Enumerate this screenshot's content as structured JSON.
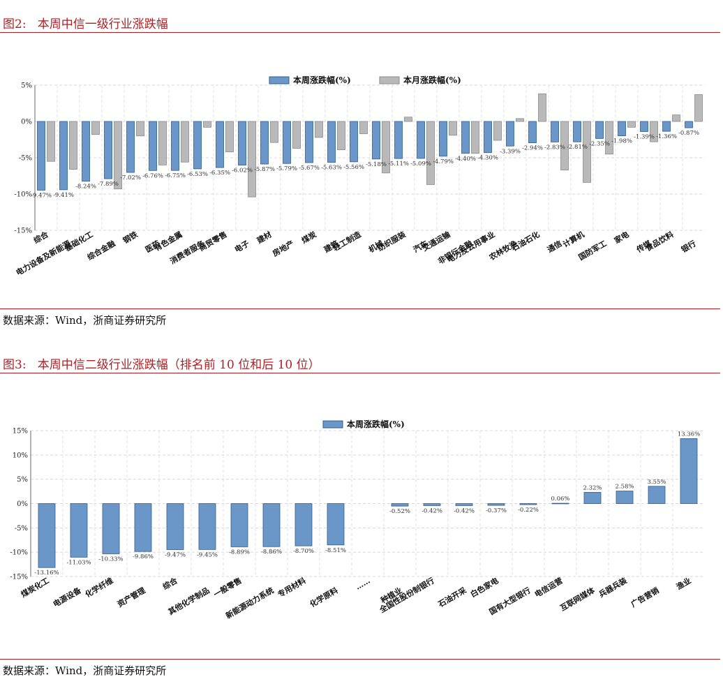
{
  "figure2": {
    "title": "图2:   本周中信一级行业涨跌幅",
    "source": "数据来源：Wind，浙商证券研究所"
  },
  "figure3": {
    "title": "图3:   本周中信二级行业涨跌幅（排名前 10 位和后 10 位）",
    "source": "数据来源：Wind，浙商证券研究所"
  },
  "colors": {
    "accent": "#b01e23",
    "bar_blue": "#6a97c8",
    "bar_blue_edge": "#2e5d92",
    "bar_gray": "#b9b9b9",
    "bar_gray_edge": "#8a8a8a"
  },
  "chart_data": [
    {
      "type": "bar",
      "title": "",
      "xlabel": "",
      "ylabel": "",
      "ylim": [
        -15,
        5
      ],
      "yticks": [
        "5%",
        "0%",
        "-5%",
        "-10%",
        "-15%"
      ],
      "grid": true,
      "legend": "top-center",
      "categories": [
        "综合",
        "电力设备及新能源",
        "基础化工",
        "综合金融",
        "钢铁",
        "医药",
        "有色金属",
        "消费者服务",
        "商贸零售",
        "电子",
        "建材",
        "房地产",
        "煤炭",
        "建筑",
        "轻工制造",
        "机械",
        "纺织服装",
        "汽车",
        "交通运输",
        "非银行金融",
        "电力及公用事业",
        "农林牧渔",
        "石油石化",
        "通信",
        "计算机",
        "国防军工",
        "家电",
        "传媒",
        "食品饮料",
        "银行"
      ],
      "series": [
        {
          "name": "本周涨跌幅(%)",
          "values": [
            -9.47,
            -9.41,
            -8.24,
            -7.89,
            -7.02,
            -6.76,
            -6.75,
            -6.53,
            -6.35,
            -6.02,
            -5.87,
            -5.79,
            -5.67,
            -5.63,
            -5.56,
            -5.18,
            -5.11,
            -5.09,
            -4.79,
            -4.4,
            -4.3,
            -3.39,
            -2.94,
            -2.83,
            -2.81,
            -2.35,
            -1.98,
            -1.39,
            -1.36,
            -0.87
          ]
        },
        {
          "name": "本月涨跌幅(%)",
          "values": [
            -5.5,
            -6.6,
            -1.8,
            -9.3,
            -2.0,
            -6.0,
            -5.6,
            -0.8,
            -4.2,
            -10.4,
            -2.9,
            -3.7,
            -2.2,
            -3.9,
            -1.7,
            -7.1,
            0.6,
            -8.7,
            -1.9,
            -4.4,
            -2.6,
            0.4,
            3.8,
            -6.7,
            -8.4,
            -4.5,
            -0.8,
            -2.8,
            0.9,
            3.7
          ]
        }
      ],
      "labels": [
        "-9.47%",
        "-9.41%",
        "-8.24%",
        "-7.89%",
        "-7.02%",
        "-6.76%",
        "-6.75%",
        "-6.53%",
        "-6.35%",
        "-6.02%",
        "-5.87%",
        "-5.79%",
        "-5.67%",
        "-5.63%",
        "-5.56%",
        "-5.18%",
        "-5.11%",
        "-5.09%",
        "-4.79%",
        "-4.40%",
        "-4.30%",
        "-3.39%",
        "-2.94%",
        "-2.83%",
        "-2.81%",
        "-2.35%",
        "-1.98%",
        "-1.39%",
        "-1.36%",
        "-0.87%"
      ]
    },
    {
      "type": "bar",
      "title": "",
      "xlabel": "",
      "ylabel": "",
      "ylim": [
        -15,
        15
      ],
      "yticks": [
        "15%",
        "10%",
        "5%",
        "0%",
        "-5%",
        "-10%",
        "-15%"
      ],
      "grid": true,
      "legend": "top-center",
      "categories": [
        "煤炭化工",
        "电源设备",
        "化学纤维",
        "资产管理",
        "综合",
        "其他化学制品",
        "一般零售",
        "新能源动力系统",
        "专用材料",
        "化学原料",
        "……",
        "种植业",
        "全国性股份制银行",
        "石油开采",
        "白色家电",
        "国有大型银行",
        "电信运营",
        "互联网媒体",
        "兵器兵装",
        "广告营销",
        "渔业"
      ],
      "series": [
        {
          "name": "本周涨跌幅(%)",
          "values": [
            -13.16,
            -11.03,
            -10.33,
            -9.86,
            -9.47,
            -9.45,
            -8.89,
            -8.86,
            -8.7,
            -8.51,
            null,
            -0.52,
            -0.42,
            -0.42,
            -0.37,
            -0.22,
            0.06,
            2.32,
            2.58,
            3.55,
            13.36
          ]
        }
      ],
      "labels": [
        "-13.16%",
        "-11.03%",
        "-10.33%",
        "-9.86%",
        "-9.47%",
        "-9.45%",
        "-8.89%",
        "-8.86%",
        "-8.70%",
        "-8.51%",
        "",
        "-0.52%",
        "-0.42%",
        "-0.42%",
        "-0.37%",
        "-0.22%",
        "0.06%",
        "2.32%",
        "2.58%",
        "3.55%",
        "13.36%"
      ]
    }
  ]
}
